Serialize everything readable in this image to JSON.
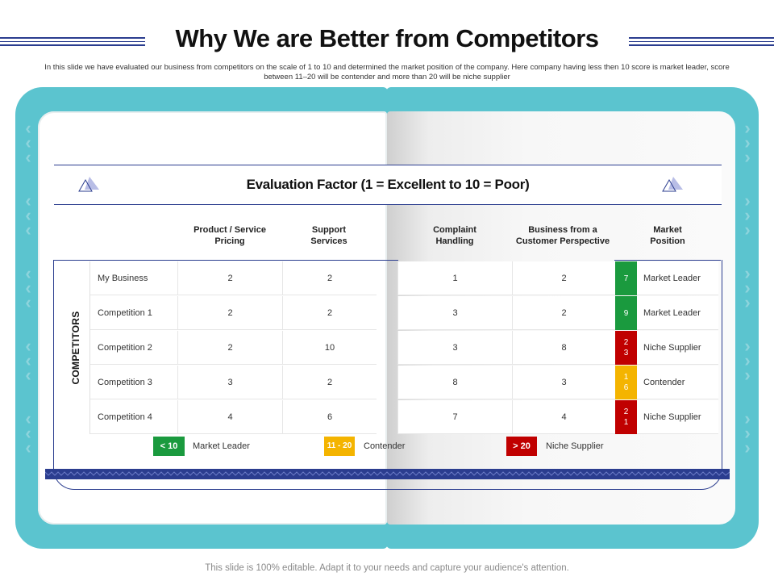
{
  "title": "Why We are Better from Competitors",
  "subtitle": "In this slide we have evaluated our business from competitors on the scale of  1 to 10 and determined the market position of the company. Here company having less then 10 score is market leader, score between 11–20 will be contender and more than 20 will be niche supplier",
  "evaluation_title": "Evaluation Factor (1 = Excellent to 10 = Poor)",
  "side_label": "COMPETITORS",
  "columns": {
    "pricing": "Product / Service Pricing",
    "support": "Support Services",
    "complaint": "Complaint Handling",
    "business": "Business from a Customer Perspective",
    "position": "Market Position"
  },
  "rows": [
    {
      "name": "My Business",
      "pricing": "2",
      "support": "2",
      "complaint": "1",
      "business": "2",
      "score": "7",
      "position": "Market Leader"
    },
    {
      "name": "Competition 1",
      "pricing": "2",
      "support": "2",
      "complaint": "3",
      "business": "2",
      "score": "9",
      "position": "Market Leader"
    },
    {
      "name": "Competition 2",
      "pricing": "2",
      "support": "10",
      "complaint": "3",
      "business": "8",
      "score": "23",
      "position": "Niche Supplier"
    },
    {
      "name": "Competition 3",
      "pricing": "3",
      "support": "2",
      "complaint": "8",
      "business": "3",
      "score": "16",
      "position": "Contender"
    },
    {
      "name": "Competition 4",
      "pricing": "4",
      "support": "6",
      "complaint": "7",
      "business": "4",
      "score": "21",
      "position": "Niche Supplier"
    }
  ],
  "legend": [
    {
      "range": "< 10",
      "label": "Market Leader"
    },
    {
      "range": "11 - 20",
      "label": "Contender"
    },
    {
      "range": "> 20",
      "label": "Niche Supplier"
    }
  ],
  "colors": {
    "leader": "#1a9a3e",
    "contender": "#f4b400",
    "niche": "#c00000",
    "book": "#5bc4cf",
    "accent": "#2b3d8f"
  },
  "footer": "This slide is 100% editable. Adapt it to your needs and capture your audience's attention."
}
